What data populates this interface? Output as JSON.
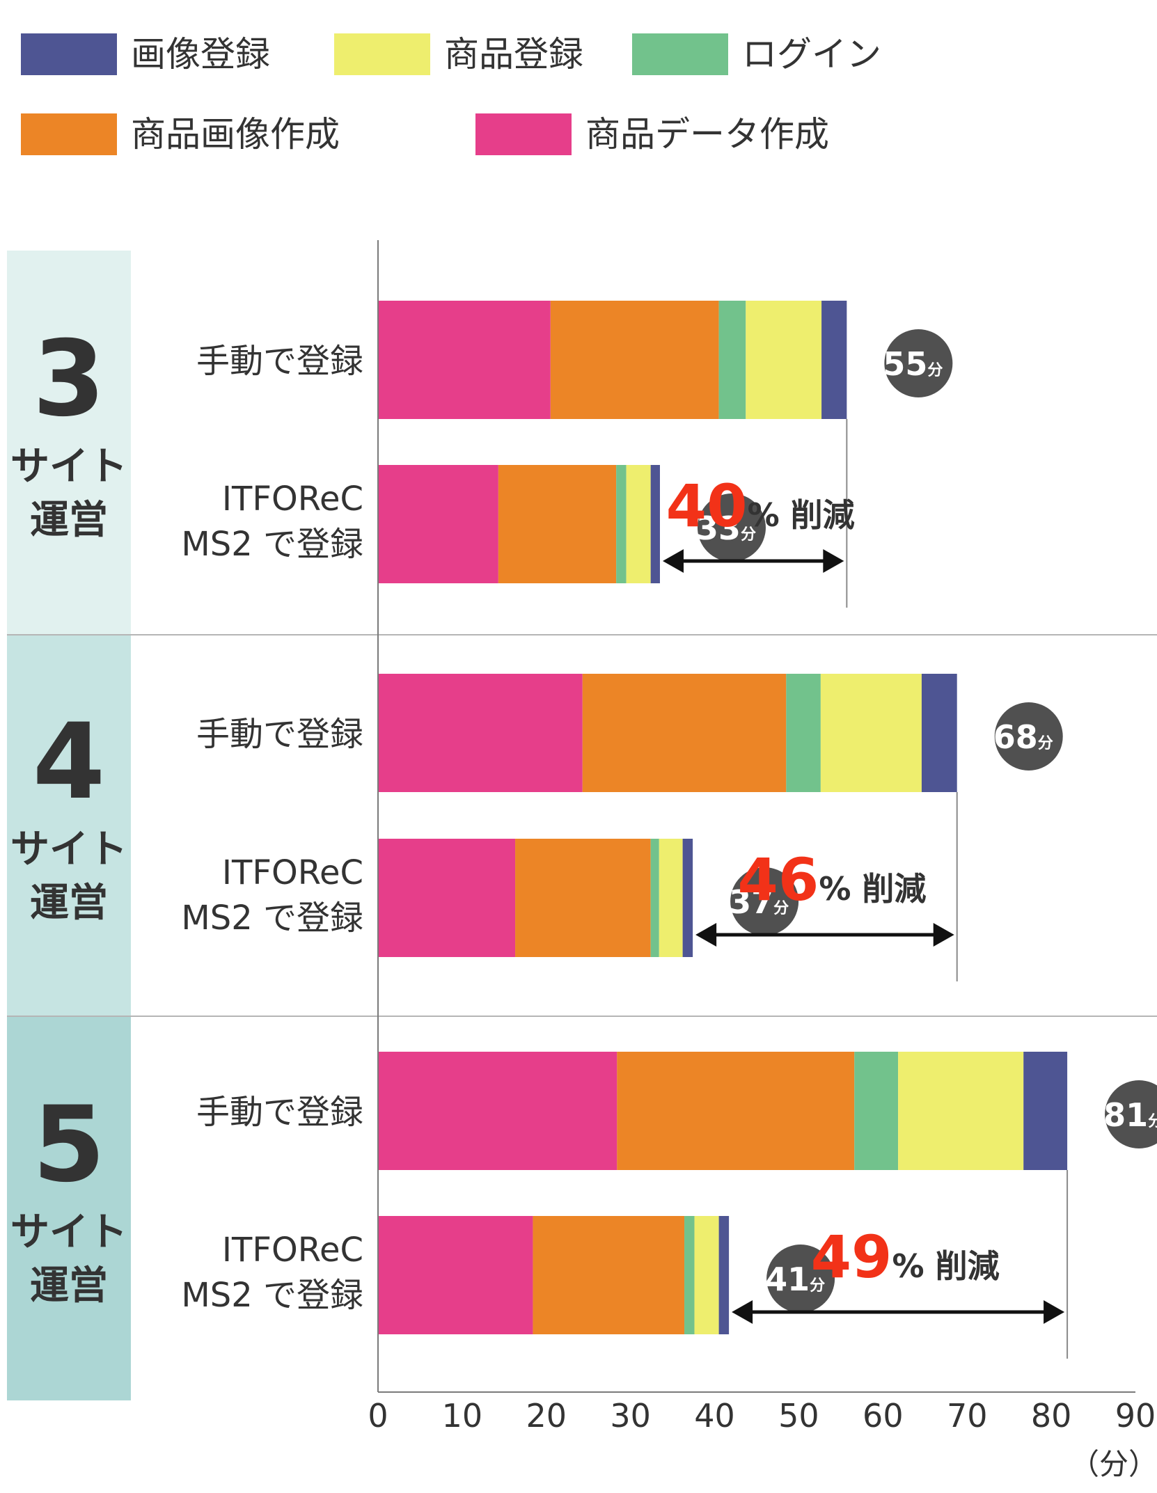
{
  "chart_data": {
    "type": "bar",
    "orientation": "horizontal",
    "stacked": true,
    "xlim": [
      0,
      90
    ],
    "x_ticks": [
      "0",
      "10",
      "20",
      "30",
      "40",
      "50",
      "60",
      "70",
      "80",
      "90"
    ],
    "x_unit": "（分）",
    "legend": {
      "placement": "top",
      "entries": [
        {
          "name": "画像登録",
          "color": "#4e5593"
        },
        {
          "name": "商品登録",
          "color": "#eeee6e"
        },
        {
          "name": "ログイン",
          "color": "#72c28c"
        },
        {
          "name": "商品画像作成",
          "color": "#ec8526"
        },
        {
          "name": "商品データ作成",
          "color": "#e63e8a"
        }
      ]
    },
    "stack_order": [
      "商品データ作成",
      "商品画像作成",
      "ログイン",
      "商品登録",
      "画像登録"
    ],
    "groups": [
      {
        "number": "3",
        "caption_line1": "サイト",
        "caption_line2": "運営",
        "panel_color": "#e1f1ef",
        "bars": [
          {
            "label_line1": "手動で登録",
            "label_line2": "",
            "total_number": "55",
            "total_unit": "分",
            "values": [
              20.5,
              20,
              3.2,
              9,
              3
            ]
          },
          {
            "label_line1": "ITFOReC",
            "label_line2": "MS2 で登録",
            "total_number": "33",
            "total_unit": "分",
            "values": [
              14.3,
              14,
              1.2,
              2.9,
              1.1
            ]
          }
        ],
        "reduction": {
          "number": "40",
          "suffix": "% 削減"
        }
      },
      {
        "number": "4",
        "caption_line1": "サイト",
        "caption_line2": "運営",
        "panel_color": "#c6e4e2",
        "bars": [
          {
            "label_line1": "手動で登録",
            "label_line2": "",
            "total_number": "68",
            "total_unit": "分",
            "values": [
              24.3,
              24.2,
              4.1,
              12,
              4.2
            ]
          },
          {
            "label_line1": "ITFOReC",
            "label_line2": "MS2 で登録",
            "total_number": "37",
            "total_unit": "分",
            "values": [
              16.3,
              16.1,
              1,
              2.8,
              1.2
            ]
          }
        ],
        "reduction": {
          "number": "46",
          "suffix": "% 削減"
        }
      },
      {
        "number": "5",
        "caption_line1": "サイト",
        "caption_line2": "運営",
        "panel_color": "#acd6d4",
        "bars": [
          {
            "label_line1": "手動で登録",
            "label_line2": "",
            "total_number": "81",
            "total_unit": "分",
            "values": [
              28.4,
              28.2,
              5.2,
              14.9,
              5.2
            ]
          },
          {
            "label_line1": "ITFOReC",
            "label_line2": "MS2 で登録",
            "total_number": "41",
            "total_unit": "分",
            "values": [
              18.4,
              18,
              1.2,
              2.9,
              1.2
            ]
          }
        ],
        "reduction": {
          "number": "49",
          "suffix": "% 削減"
        }
      }
    ]
  }
}
